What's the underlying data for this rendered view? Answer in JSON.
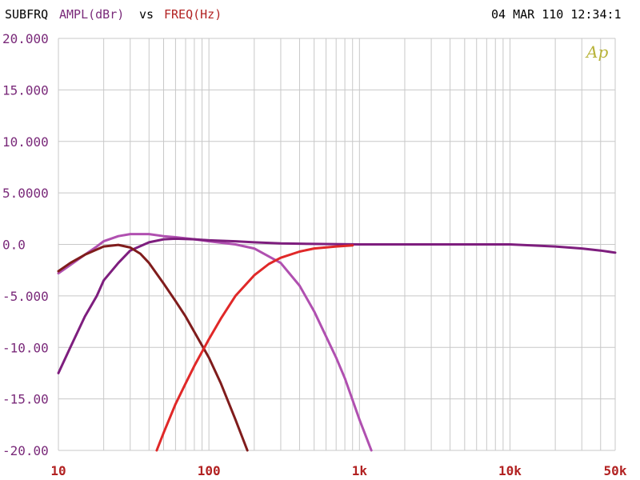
{
  "header": {
    "left_prefix": "SUBFRQ",
    "y_quantity": "AMPL(dBr)",
    "vs": "vs",
    "x_quantity": "FREQ(Hz)",
    "timestamp": "04 MAR 110 12:34:1",
    "logo": "Ap"
  },
  "colors": {
    "grid": "#c8c8c8",
    "axis_text": "#7a2a7a",
    "x_label_color": "#b22222",
    "logo": "#b8b33a",
    "series_magenta": "#b050b0",
    "series_purple": "#7e1e7e",
    "series_darkred": "#801c1c",
    "series_red": "#e02828"
  },
  "chart_data": {
    "type": "line",
    "x_scale": "log",
    "xlim": [
      10,
      50000
    ],
    "ylim": [
      -20,
      20
    ],
    "ylabel": "AMPL(dBr)",
    "xlabel": "FREQ(Hz)",
    "y_ticks": [
      "20.000",
      "15.000",
      "10.000",
      "5.0000",
      "0.0",
      "-5.000",
      "-10.00",
      "-15.00",
      "-20.00"
    ],
    "y_tick_values": [
      20,
      15,
      10,
      5,
      0,
      -5,
      -10,
      -15,
      -20
    ],
    "x_ticks": [
      "10",
      "100",
      "1k",
      "10k",
      "50k"
    ],
    "x_tick_values": [
      10,
      100,
      1000,
      10000,
      50000
    ],
    "grid": true,
    "series": [
      {
        "color": "#b050b0",
        "x": [
          10,
          12,
          15,
          18,
          20,
          25,
          30,
          35,
          40,
          50,
          60,
          80,
          100,
          150,
          200,
          300,
          400,
          500,
          700,
          800,
          1000,
          1200
        ],
        "y": [
          -2.8,
          -2.0,
          -1.0,
          -0.2,
          0.3,
          0.8,
          1.0,
          1.0,
          1.0,
          0.8,
          0.7,
          0.5,
          0.3,
          0.0,
          -0.4,
          -1.8,
          -4.0,
          -6.5,
          -11.0,
          -13.0,
          -17.0,
          -20.0
        ]
      },
      {
        "color": "#7e1e7e",
        "x": [
          10,
          12,
          15,
          18,
          20,
          25,
          30,
          40,
          50,
          60,
          80,
          100,
          150,
          200,
          300,
          500,
          1000,
          2000,
          5000,
          10000,
          20000,
          30000,
          40000,
          50000
        ],
        "y": [
          -12.5,
          -10.0,
          -7.0,
          -5.0,
          -3.5,
          -1.8,
          -0.6,
          0.2,
          0.5,
          0.55,
          0.5,
          0.4,
          0.3,
          0.2,
          0.1,
          0.05,
          0.0,
          0.0,
          0.0,
          0.0,
          -0.2,
          -0.4,
          -0.6,
          -0.8
        ]
      },
      {
        "color": "#801c1c",
        "x": [
          10,
          12,
          15,
          18,
          20,
          25,
          30,
          35,
          40,
          50,
          60,
          70,
          80,
          100,
          120,
          150,
          180
        ],
        "y": [
          -2.6,
          -1.8,
          -1.0,
          -0.5,
          -0.2,
          -0.05,
          -0.3,
          -0.9,
          -1.8,
          -3.8,
          -5.5,
          -7.0,
          -8.5,
          -11.0,
          -13.5,
          -17.0,
          -20.0
        ]
      },
      {
        "color": "#e02828",
        "x": [
          45,
          50,
          60,
          70,
          80,
          100,
          120,
          150,
          200,
          250,
          300,
          400,
          500,
          700,
          900
        ],
        "y": [
          -20.0,
          -18.3,
          -15.5,
          -13.5,
          -11.8,
          -9.2,
          -7.2,
          -5.0,
          -3.0,
          -1.9,
          -1.3,
          -0.7,
          -0.4,
          -0.2,
          -0.1
        ]
      }
    ]
  }
}
